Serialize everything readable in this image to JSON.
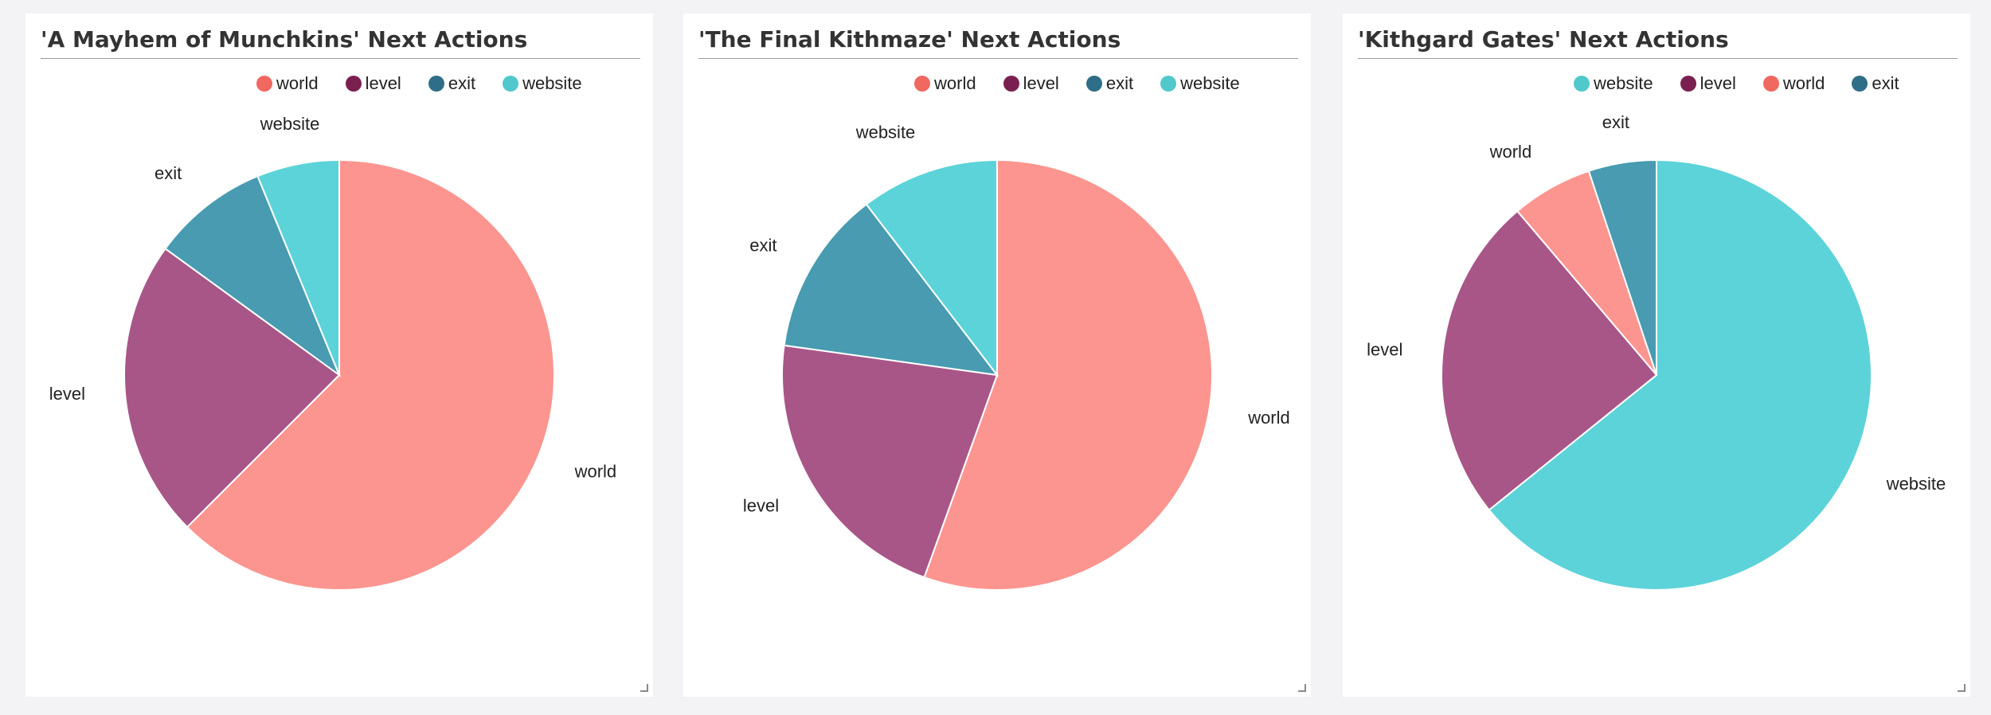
{
  "colors": {
    "world": "#fc958f",
    "level": "#a85688",
    "exit": "#489bb0",
    "website": "#5cd3d9",
    "legend_world": "#f06860",
    "legend_level": "#7a2050",
    "legend_exit": "#2e6e88",
    "legend_website": "#50c8cc"
  },
  "panels": [
    {
      "title": "'A Mayhem of Munchkins' Next Actions",
      "legend": [
        {
          "label": "world",
          "icon": "legend-dot",
          "color_key": "legend_world"
        },
        {
          "label": "level",
          "icon": "legend-dot",
          "color_key": "legend_level"
        },
        {
          "label": "exit",
          "icon": "legend-dot",
          "color_key": "legend_exit"
        },
        {
          "label": "website",
          "icon": "legend-dot",
          "color_key": "legend_website"
        }
      ]
    },
    {
      "title": "'The Final Kithmaze' Next Actions",
      "legend": [
        {
          "label": "world",
          "icon": "legend-dot",
          "color_key": "legend_world"
        },
        {
          "label": "level",
          "icon": "legend-dot",
          "color_key": "legend_level"
        },
        {
          "label": "exit",
          "icon": "legend-dot",
          "color_key": "legend_exit"
        },
        {
          "label": "website",
          "icon": "legend-dot",
          "color_key": "legend_website"
        }
      ]
    },
    {
      "title": "'Kithgard Gates' Next Actions",
      "legend": [
        {
          "label": "website",
          "icon": "legend-dot",
          "color_key": "legend_website"
        },
        {
          "label": "level",
          "icon": "legend-dot",
          "color_key": "legend_level"
        },
        {
          "label": "world",
          "icon": "legend-dot",
          "color_key": "legend_world"
        },
        {
          "label": "exit",
          "icon": "legend-dot",
          "color_key": "legend_exit"
        }
      ]
    }
  ],
  "chart_data": [
    {
      "type": "pie",
      "title": "'A Mayhem of Munchkins' Next Actions",
      "legend_position": "top-right",
      "categories": [
        "world",
        "level",
        "exit",
        "website"
      ],
      "values": [
        62.5,
        22.5,
        8.8,
        6.2
      ]
    },
    {
      "type": "pie",
      "title": "'The Final Kithmaze' Next Actions",
      "legend_position": "top-right",
      "categories": [
        "world",
        "level",
        "exit",
        "website"
      ],
      "values": [
        55.5,
        21.7,
        12.4,
        10.4
      ]
    },
    {
      "type": "pie",
      "title": "'Kithgard Gates' Next Actions",
      "legend_position": "top-right",
      "categories": [
        "website",
        "level",
        "world",
        "exit"
      ],
      "values": [
        64.2,
        24.6,
        6.1,
        5.1
      ]
    }
  ]
}
